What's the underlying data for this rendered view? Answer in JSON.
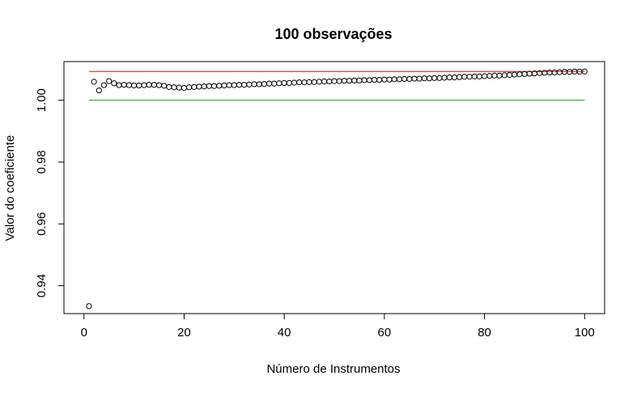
{
  "chart_data": {
    "type": "scatter",
    "title": "100 observações",
    "xlabel": "Número de Instrumentos",
    "ylabel": "Valor do coeficiente",
    "xlim": [
      0,
      100
    ],
    "ylim": [
      0.934,
      1.0095
    ],
    "x_ticks": [
      0,
      20,
      40,
      60,
      80,
      100
    ],
    "x_tick_labels": [
      "0",
      "20",
      "40",
      "60",
      "80",
      "100"
    ],
    "y_ticks": [
      0.94,
      0.96,
      0.98,
      1.0
    ],
    "y_tick_labels": [
      "0.94",
      "0.96",
      "0.98",
      "1.00"
    ],
    "grid": false,
    "legend": "none",
    "series": [
      {
        "marker": "open-circle",
        "color": "#000000",
        "x": [
          1,
          2,
          3,
          4,
          5,
          6,
          7,
          8,
          9,
          10,
          11,
          12,
          13,
          14,
          15,
          16,
          17,
          18,
          19,
          20,
          21,
          22,
          23,
          24,
          25,
          26,
          27,
          28,
          29,
          30,
          31,
          32,
          33,
          34,
          35,
          36,
          37,
          38,
          39,
          40,
          41,
          42,
          43,
          44,
          45,
          46,
          47,
          48,
          49,
          50,
          51,
          52,
          53,
          54,
          55,
          56,
          57,
          58,
          59,
          60,
          61,
          62,
          63,
          64,
          65,
          66,
          67,
          68,
          69,
          70,
          71,
          72,
          73,
          74,
          75,
          76,
          77,
          78,
          79,
          80,
          81,
          82,
          83,
          84,
          85,
          86,
          87,
          88,
          89,
          90,
          91,
          92,
          93,
          94,
          95,
          96,
          97,
          98,
          99,
          100
        ],
        "y": [
          0.9334,
          1.006,
          1.0032,
          1.0049,
          1.0062,
          1.0055,
          1.0049,
          1.005,
          1.0049,
          1.0048,
          1.0048,
          1.0049,
          1.005,
          1.005,
          1.0049,
          1.0047,
          1.0043,
          1.0042,
          1.0041,
          1.004,
          1.0042,
          1.0043,
          1.0044,
          1.0045,
          1.0046,
          1.0046,
          1.0047,
          1.0048,
          1.0049,
          1.0049,
          1.005,
          1.005,
          1.0051,
          1.0052,
          1.0052,
          1.0053,
          1.0054,
          1.0054,
          1.0055,
          1.0056,
          1.0056,
          1.0057,
          1.0058,
          1.0058,
          1.0059,
          1.0059,
          1.006,
          1.0061,
          1.0061,
          1.0062,
          1.0062,
          1.0063,
          1.0063,
          1.0064,
          1.0064,
          1.0065,
          1.0065,
          1.0066,
          1.0066,
          1.0067,
          1.0067,
          1.0068,
          1.0068,
          1.0069,
          1.0069,
          1.007,
          1.007,
          1.0071,
          1.0071,
          1.0072,
          1.0072,
          1.0073,
          1.0074,
          1.0074,
          1.0075,
          1.0076,
          1.0076,
          1.0077,
          1.0077,
          1.0078,
          1.0079,
          1.008,
          1.008,
          1.0081,
          1.0082,
          1.0083,
          1.0084,
          1.0085,
          1.0086,
          1.0087,
          1.0088,
          1.0089,
          1.009,
          1.009,
          1.0091,
          1.0092,
          1.0092,
          1.0093,
          1.0093,
          1.0093
        ]
      }
    ],
    "reference_lines": [
      {
        "color": "#ff0000",
        "x": [
          1,
          100
        ],
        "y": 1.0093
      },
      {
        "color": "#00a000",
        "x": [
          1,
          100
        ],
        "y": 1.0
      }
    ]
  }
}
